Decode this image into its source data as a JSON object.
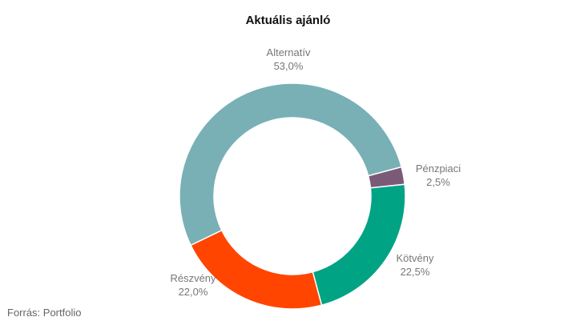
{
  "chart_data": {
    "type": "pie",
    "title": "Aktuális ajánló",
    "donut": true,
    "slices": [
      {
        "label": "Pénzpiaci",
        "display": "2,5%",
        "value": 2.5,
        "color": "#7b5a78"
      },
      {
        "label": "Kötvény",
        "display": "22,5%",
        "value": 22.5,
        "color": "#00a383"
      },
      {
        "label": "Részvény",
        "display": "22,0%",
        "value": 22.0,
        "color": "#ff4500"
      },
      {
        "label": "Alternatív",
        "display": "53,0%",
        "value": 53.0,
        "color": "#78b0b5"
      }
    ],
    "legend": "none"
  },
  "footer": {
    "source": "Forrás: Portfolio"
  }
}
